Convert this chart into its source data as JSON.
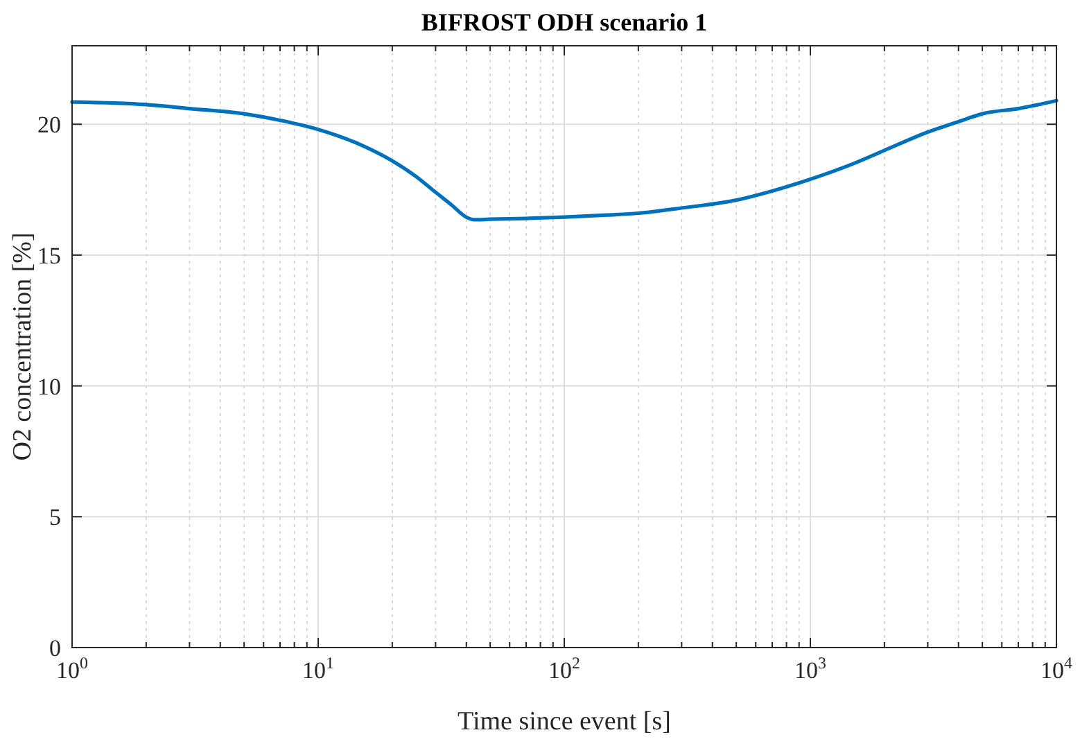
{
  "chart_data": {
    "type": "line",
    "title": "BIFROST ODH scenario 1",
    "xlabel": "Time since event [s]",
    "ylabel": "O2 concentration [%]",
    "log": "x",
    "grid": true,
    "line_style": "solid",
    "marker": "none",
    "xlim": [
      1,
      10000
    ],
    "xticks": [
      {
        "value": 1,
        "label": "10$^{0}$"
      },
      {
        "value": 10,
        "label": "10$^{1}$"
      },
      {
        "value": 100,
        "label": "10$^{2}$"
      },
      {
        "value": 1000,
        "label": "10$^{3}$"
      },
      {
        "value": 10000,
        "label": "10$^{4}$"
      }
    ],
    "ylim": [
      0,
      23
    ],
    "yticks": [
      0,
      5,
      10,
      15,
      20
    ],
    "series": [
      {
        "color": "#0072bd",
        "x": [
          1,
          2,
          3,
          5,
          7,
          10,
          15,
          20,
          25,
          30,
          35,
          40,
          43,
          50,
          70,
          100,
          150,
          200,
          300,
          500,
          700,
          1000,
          1500,
          2000,
          3000,
          4000,
          5000,
          7000,
          10000
        ],
        "values": [
          20.85,
          20.75,
          20.6,
          20.4,
          20.15,
          19.8,
          19.2,
          18.6,
          18.0,
          17.4,
          16.9,
          16.45,
          16.35,
          16.37,
          16.4,
          16.45,
          16.53,
          16.6,
          16.8,
          17.1,
          17.45,
          17.9,
          18.5,
          19.0,
          19.7,
          20.1,
          20.4,
          20.6,
          20.9
        ]
      }
    ]
  }
}
